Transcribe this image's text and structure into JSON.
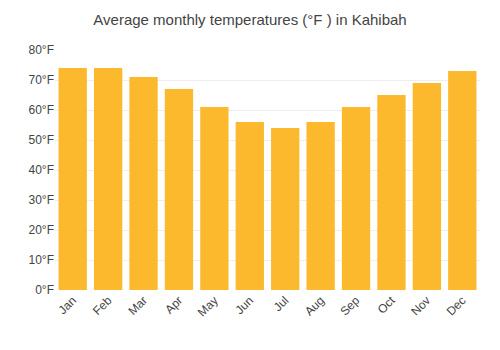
{
  "chart_data": {
    "type": "bar",
    "title": "Average monthly temperatures (°F ) in Kahibah",
    "categories": [
      "Jan",
      "Feb",
      "Mar",
      "Apr",
      "May",
      "Jun",
      "Jul",
      "Aug",
      "Sep",
      "Oct",
      "Nov",
      "Dec"
    ],
    "values": [
      74,
      74,
      71,
      67,
      61,
      56,
      54,
      56,
      61,
      65,
      69,
      73
    ],
    "color": "#FDB92E",
    "ylim": [
      0,
      80
    ],
    "yticks": [
      {
        "value": 0,
        "label": "0°F"
      },
      {
        "value": 10,
        "label": "10°F"
      },
      {
        "value": 20,
        "label": "20°F"
      },
      {
        "value": 30,
        "label": "30°F"
      },
      {
        "value": 40,
        "label": "40°F"
      },
      {
        "value": 50,
        "label": "50°F"
      },
      {
        "value": 60,
        "label": "60°F"
      },
      {
        "value": 70,
        "label": "70°F"
      },
      {
        "value": 80,
        "label": "80°F"
      }
    ],
    "grid": true
  }
}
